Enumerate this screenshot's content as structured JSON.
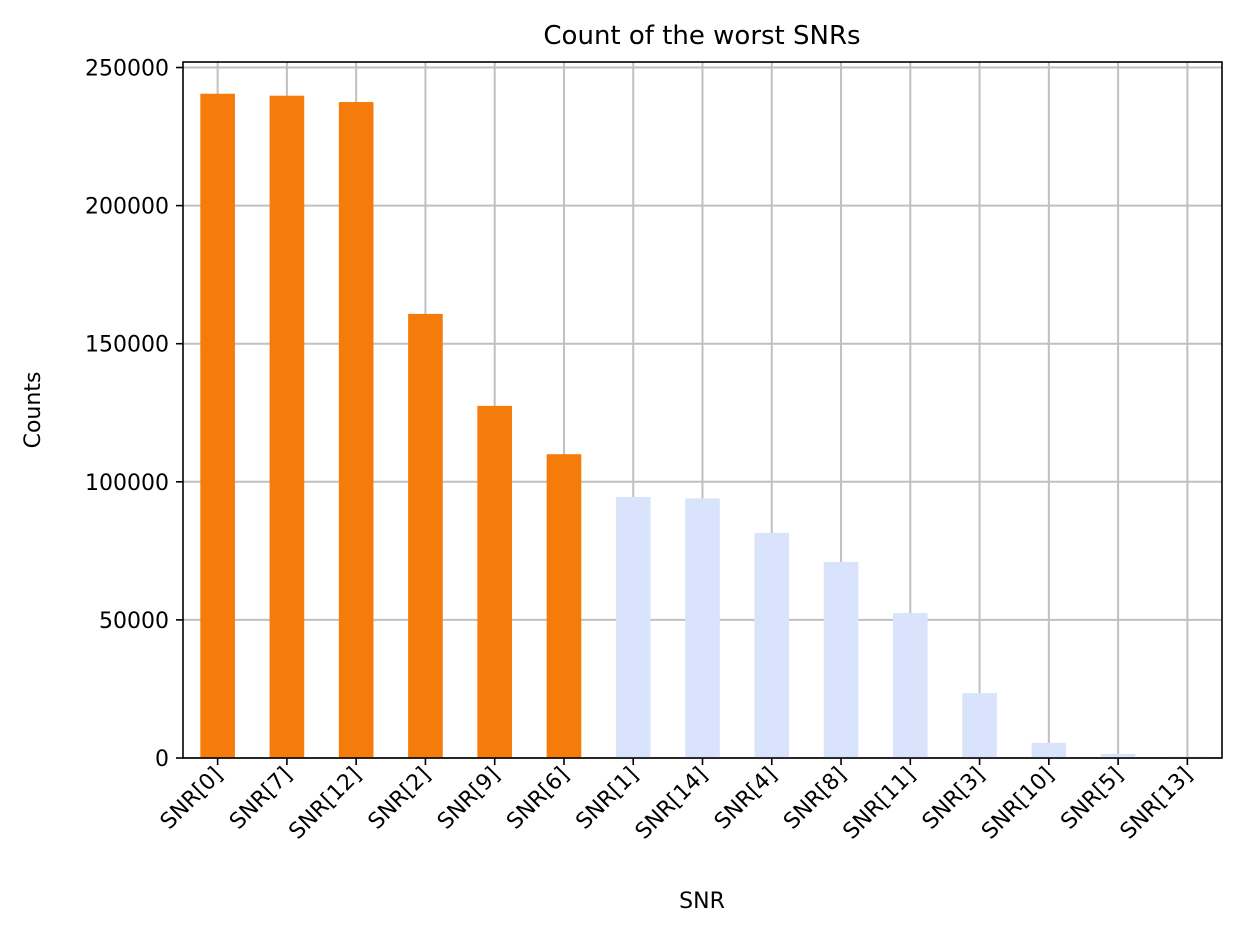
{
  "chart_data": {
    "type": "bar",
    "title": "Count of the worst SNRs",
    "xlabel": "SNR",
    "ylabel": "Counts",
    "categories": [
      "SNR[0]",
      "SNR[7]",
      "SNR[12]",
      "SNR[2]",
      "SNR[9]",
      "SNR[6]",
      "SNR[1]",
      "SNR[14]",
      "SNR[4]",
      "SNR[8]",
      "SNR[11]",
      "SNR[3]",
      "SNR[10]",
      "SNR[5]",
      "SNR[13]"
    ],
    "values": [
      240500,
      239800,
      237500,
      160800,
      127500,
      110000,
      94500,
      94000,
      81500,
      71000,
      52500,
      23500,
      5500,
      1500,
      500
    ],
    "highlight": [
      true,
      true,
      true,
      true,
      true,
      true,
      false,
      false,
      false,
      false,
      false,
      false,
      false,
      false,
      false
    ],
    "ylim": [
      0,
      252000
    ],
    "yticks": [
      0,
      50000,
      100000,
      150000,
      200000,
      250000
    ],
    "grid": true,
    "colors": {
      "highlight": "#f57c0a",
      "normal": "#d9e4fc",
      "grid": "#c0c0c0",
      "axis": "#000000"
    }
  }
}
